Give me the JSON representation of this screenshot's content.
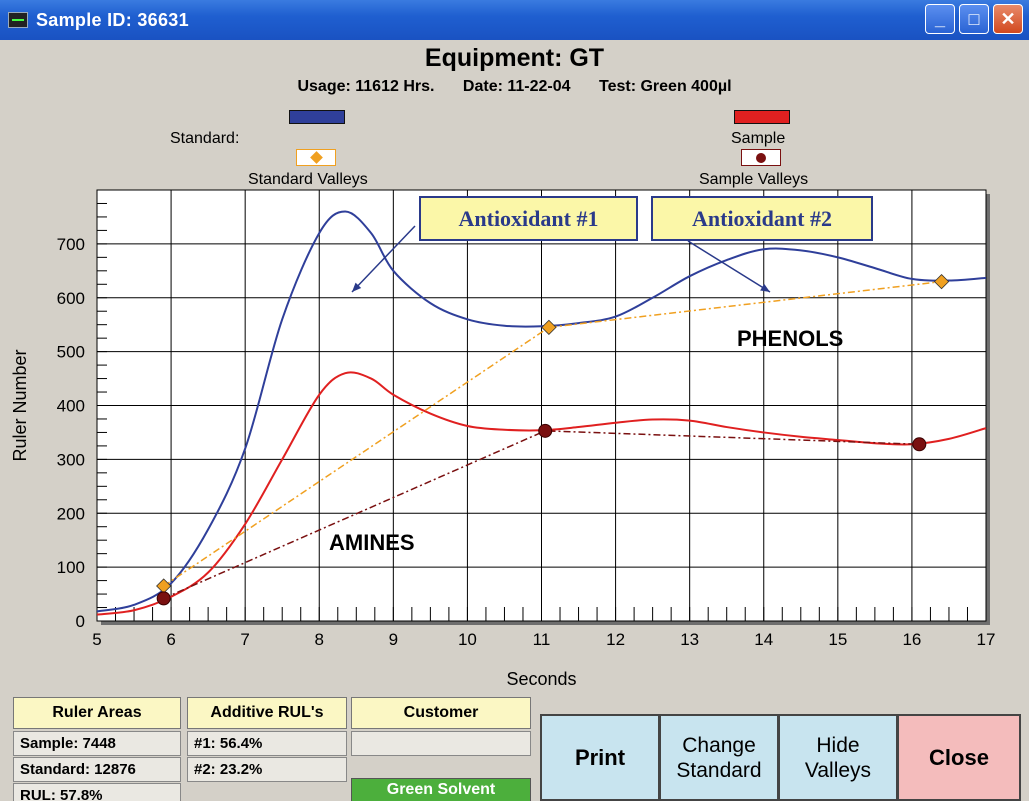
{
  "window": {
    "title": "Sample ID: 36631",
    "minimize": "_",
    "maximize": "□",
    "close": "✕"
  },
  "header": {
    "title": "Equipment: GT",
    "usage": "Usage: 11612 Hrs.",
    "date": "Date: 11-22-04",
    "test": "Test: Green 400µl"
  },
  "legend": {
    "standard_label": "Standard:",
    "standard_valleys_label": "Standard Valleys",
    "sample_label": "Sample",
    "sample_valleys_label": "Sample Valleys",
    "colors": {
      "standard": "#2f3f9a",
      "sample": "#e02020",
      "standard_valley": "#f0a020",
      "sample_valley": "#7a1010"
    }
  },
  "annotations": {
    "antioxidant1": "Antioxidant #1",
    "antioxidant2": "Antioxidant #2",
    "phenols": "PHENOLS",
    "amines": "AMINES"
  },
  "chart_data": {
    "type": "line",
    "xlabel": "Seconds",
    "ylabel": "Ruler Number",
    "xlim": [
      5,
      17
    ],
    "ylim": [
      0,
      800
    ],
    "xticks": [
      5,
      6,
      7,
      8,
      9,
      10,
      11,
      12,
      13,
      14,
      15,
      16,
      17
    ],
    "yticks": [
      0,
      100,
      200,
      300,
      400,
      500,
      600,
      700
    ],
    "grid": true,
    "series": [
      {
        "name": "Standard",
        "color": "#2f3f9a",
        "points": [
          [
            5.0,
            18
          ],
          [
            5.5,
            30
          ],
          [
            6.0,
            70
          ],
          [
            6.5,
            170
          ],
          [
            7.0,
            320
          ],
          [
            7.5,
            560
          ],
          [
            8.0,
            720
          ],
          [
            8.35,
            760
          ],
          [
            8.7,
            720
          ],
          [
            9.0,
            650
          ],
          [
            9.5,
            590
          ],
          [
            10.0,
            560
          ],
          [
            10.5,
            548
          ],
          [
            11.0,
            547
          ],
          [
            11.5,
            553
          ],
          [
            12.0,
            565
          ],
          [
            12.5,
            600
          ],
          [
            13.0,
            640
          ],
          [
            13.5,
            670
          ],
          [
            14.0,
            690
          ],
          [
            14.5,
            688
          ],
          [
            15.0,
            675
          ],
          [
            15.5,
            655
          ],
          [
            16.0,
            635
          ],
          [
            16.5,
            632
          ],
          [
            17.0,
            637
          ]
        ]
      },
      {
        "name": "Sample",
        "color": "#e02020",
        "points": [
          [
            5.0,
            12
          ],
          [
            5.5,
            20
          ],
          [
            6.0,
            45
          ],
          [
            6.5,
            90
          ],
          [
            7.0,
            180
          ],
          [
            7.5,
            300
          ],
          [
            8.0,
            420
          ],
          [
            8.35,
            460
          ],
          [
            8.7,
            450
          ],
          [
            9.0,
            420
          ],
          [
            9.5,
            385
          ],
          [
            10.0,
            362
          ],
          [
            10.5,
            355
          ],
          [
            11.0,
            354
          ],
          [
            11.5,
            360
          ],
          [
            12.0,
            368
          ],
          [
            12.5,
            374
          ],
          [
            13.0,
            372
          ],
          [
            13.5,
            360
          ],
          [
            14.0,
            350
          ],
          [
            14.5,
            342
          ],
          [
            15.0,
            336
          ],
          [
            15.5,
            330
          ],
          [
            16.0,
            328
          ],
          [
            16.5,
            338
          ],
          [
            17.0,
            358
          ]
        ]
      },
      {
        "name": "Standard Valleys",
        "color": "#f0a020",
        "style": "dashed",
        "points": [
          [
            5.9,
            65
          ],
          [
            11.1,
            545
          ],
          [
            16.4,
            630
          ]
        ]
      },
      {
        "name": "Sample Valleys",
        "color": "#7a1010",
        "style": "dashed",
        "points": [
          [
            5.9,
            42
          ],
          [
            11.05,
            353
          ],
          [
            16.1,
            328
          ]
        ]
      }
    ]
  },
  "info": {
    "ruler_areas_header": "Ruler Areas",
    "sample": "Sample: 7448",
    "standard": "Standard: 12876",
    "rul": "RUL: 57.8%",
    "additive_header": "Additive RUL's",
    "additive1": "#1: 56.4%",
    "additive2": "#2: 23.2%",
    "customer_header": "Customer",
    "customer_value": "",
    "solvent": "Green Solvent"
  },
  "buttons": {
    "print": "Print",
    "change_standard_1": "Change",
    "change_standard_2": "Standard",
    "hide_valleys_1": "Hide",
    "hide_valleys_2": "Valleys",
    "close": "Close"
  }
}
